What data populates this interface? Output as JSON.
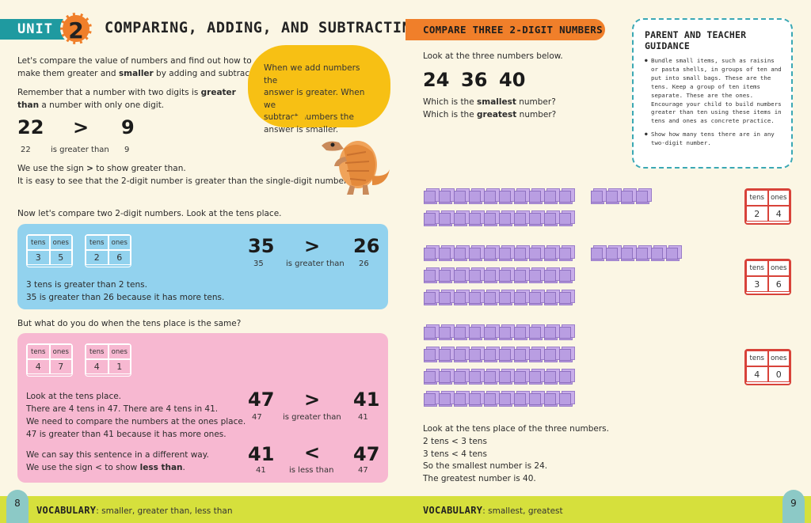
{
  "left": {
    "unit_label": "UNIT",
    "unit_number": "2",
    "unit_title": "COMPARING, ADDING, AND SUBTRACTING",
    "intro_1": "Let's compare the value of numbers and find out how to",
    "intro_2a": "make them greater and ",
    "intro_2b": "smaller",
    "intro_2c": " by adding and subtracting.",
    "remember_1a": "Remember that a number with two digits is ",
    "remember_1b": "greater",
    "remember_2a": "than",
    "remember_2b": " a number with only one digit.",
    "ex1": {
      "left": "22",
      "sign": ">",
      "right": "9",
      "left_small": "22",
      "text": "is greater than",
      "right_small": "9"
    },
    "sign_1a": "We use the sign ",
    "sign_1b": ">",
    "sign_1c": " to show greater than.",
    "sign_2": "It is easy to see that the 2-digit number is greater than the single-digit number.",
    "bubble": [
      "When we add numbers the",
      "answer is greater. When we",
      "subtract numbers the",
      "answer is smaller."
    ],
    "compare_two": "Now let's compare two 2-digit numbers. Look at the tens place.",
    "blue": {
      "pv1": {
        "h1": "tens",
        "h2": "ones",
        "d1": "3",
        "d2": "5"
      },
      "pv2": {
        "h1": "tens",
        "h2": "ones",
        "d1": "2",
        "d2": "6"
      },
      "big_left": "35",
      "sign": ">",
      "big_right": "26",
      "small_left": "35",
      "text": "is greater than",
      "small_right": "26",
      "line1": "3 tens is greater than 2 tens.",
      "line2": "35 is greater than 26 because it has more tens."
    },
    "same_q": "But what do you do when the tens place is the same?",
    "pink": {
      "pv1": {
        "h1": "tens",
        "h2": "ones",
        "d1": "4",
        "d2": "7"
      },
      "pv2": {
        "h1": "tens",
        "h2": "ones",
        "d1": "4",
        "d2": "1"
      },
      "l1": "Look at the tens place.",
      "l2": "There are 4 tens in 47. There are 4 tens in 41.",
      "l3": "We need to compare the numbers at the ones place.",
      "l4": "47 is greater than 41 because it has more ones.",
      "l5": "We can say this sentence in a different way.",
      "l6a": "We use the sign < to show ",
      "l6b": "less than",
      "l6c": ".",
      "eq1": {
        "left": "47",
        "sign": ">",
        "right": "41",
        "left_small": "47",
        "text": "is greater than",
        "right_small": "41"
      },
      "eq2": {
        "left": "41",
        "sign": "<",
        "right": "47",
        "left_small": "41",
        "text": "is less than",
        "right_small": "47"
      }
    },
    "page_number": "8",
    "vocab_label": "VOCABULARY",
    "vocab_words": ": smaller, greater than, less than"
  },
  "right": {
    "header": "COMPARE THREE 2-DIGIT NUMBERS",
    "look": "Look at the three numbers below.",
    "n1": "24",
    "n2": "36",
    "n3": "40",
    "q1a": "Which is the ",
    "q1b": "smallest",
    "q1c": " number?",
    "q2a": "Which is the ",
    "q2b": "greatest",
    "q2c": " number?",
    "guide_title": "PARENT AND TEACHER GUIDANCE",
    "guide_1": "Bundle small items, such as raisins or pasta shells, in groups of ten and put into small bags. These are the tens. Keep a group of ten items separate. These are the ones. Encourage your child to build numbers greater than ten using these items in tens and ones as concrete practice.",
    "guide_2": "Show how many tens there are in any two-digit number.",
    "pv24": {
      "h1": "tens",
      "h2": "ones",
      "d1": "2",
      "d2": "4"
    },
    "pv36": {
      "h1": "tens",
      "h2": "ones",
      "d1": "3",
      "d2": "6"
    },
    "pv40": {
      "h1": "tens",
      "h2": "ones",
      "d1": "4",
      "d2": "0"
    },
    "s1": "Look at the tens place of the three numbers.",
    "s2": "2 tens < 3 tens",
    "s3": "3 tens < 4 tens",
    "s4": "So the smallest number is 24.",
    "s5": "The greatest number is 40.",
    "page_number": "9",
    "vocab_label": "VOCABULARY",
    "vocab_words": ": smallest, greatest"
  },
  "colors": {
    "teal": "#1f9aa0",
    "orange": "#f07f2a",
    "blue_panel": "#92d2ee",
    "pink_panel": "#f7b8d1",
    "yellow": "#f7c014",
    "lime": "#d6e03c",
    "cube": "#b89be0",
    "red": "#d8433a"
  },
  "blocks": {
    "number_24": {
      "tens": 2,
      "ones": 4
    },
    "number_36": {
      "tens": 3,
      "ones": 6
    },
    "number_40": {
      "tens": 4,
      "ones": 0
    }
  }
}
